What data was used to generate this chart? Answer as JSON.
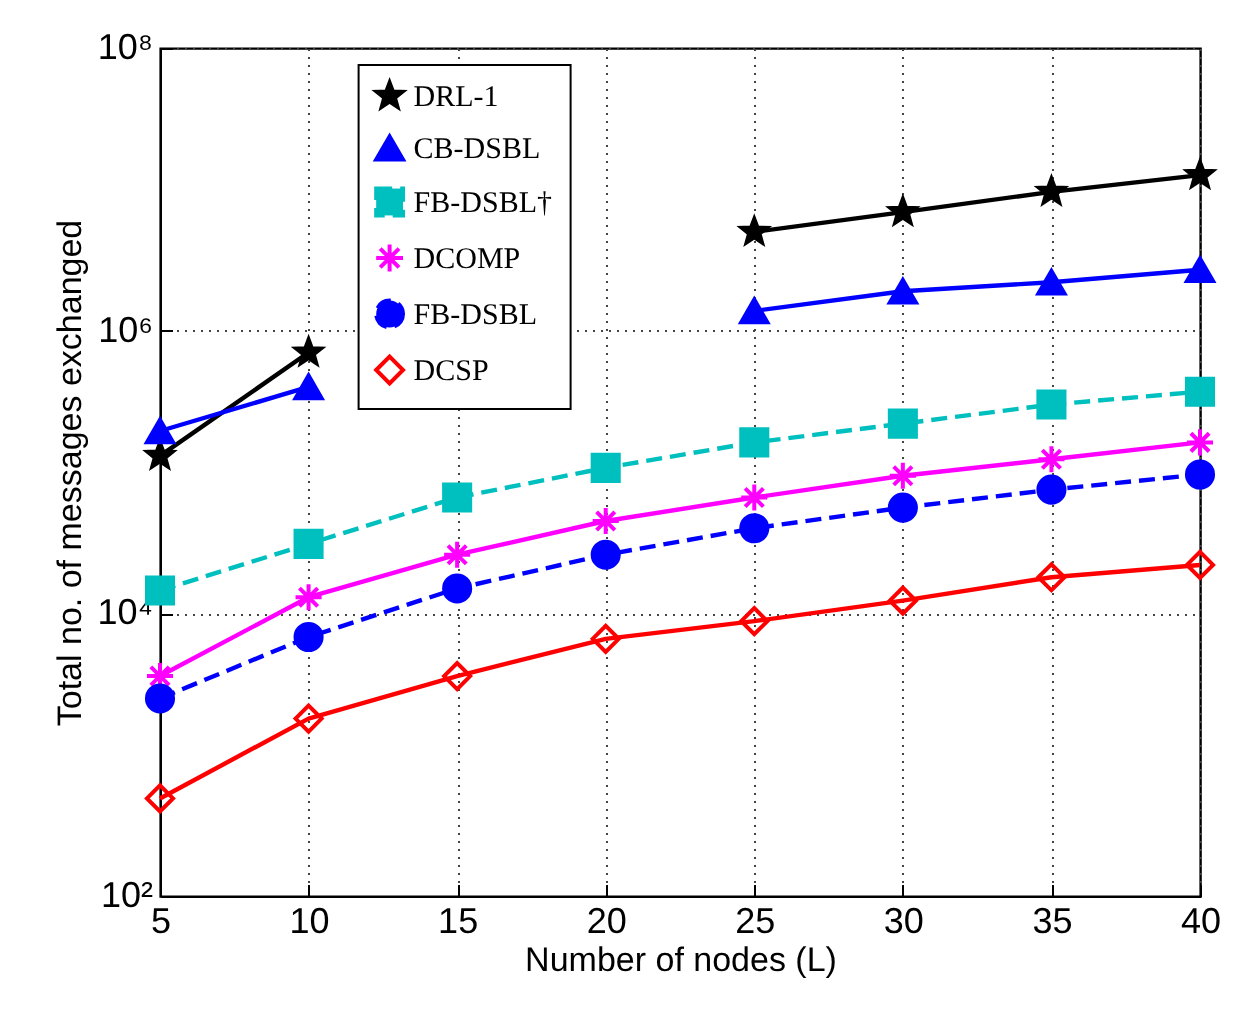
{
  "chart_data": {
    "type": "line",
    "xlabel": "Number of nodes (L)",
    "ylabel": "Total no. of messages exchanged",
    "x": [
      5,
      10,
      15,
      20,
      25,
      30,
      35,
      40
    ],
    "series": [
      {
        "name": "DRL-1",
        "color": "#000000",
        "marker": "star",
        "line_style": "solid",
        "values": [
          130000,
          700000,
          null,
          null,
          5000000,
          6900000,
          9600000,
          12600000
        ]
      },
      {
        "name": "CB-DSBL",
        "color": "#0000ff",
        "marker": "triangle",
        "line_style": "solid",
        "values": [
          195000,
          400000,
          null,
          null,
          1380000,
          1900000,
          2200000,
          2700000
        ]
      },
      {
        "name": "FB-DSBL†",
        "color": "#00bfbf",
        "marker": "square",
        "line_style": "dashed",
        "values": [
          14500,
          31000,
          66000,
          107000,
          162000,
          220000,
          300000,
          370000
        ]
      },
      {
        "name": "DCOMP",
        "color": "#ff00ff",
        "marker": "cross",
        "line_style": "solid",
        "values": [
          3600,
          13000,
          26000,
          45000,
          66000,
          94000,
          123000,
          162000
        ]
      },
      {
        "name": "FB-DSBL",
        "color": "#0000ff",
        "marker": "circle",
        "line_style": "dashed",
        "values": [
          2500,
          6800,
          15000,
          26000,
          40000,
          56000,
          75000,
          96000
        ]
      },
      {
        "name": "DCSP",
        "color": "#ff0000",
        "marker": "diamond",
        "line_style": "solid",
        "values": [
          490,
          1800,
          3600,
          6600,
          8800,
          12300,
          18000,
          22000
        ]
      }
    ],
    "xlim": [
      5,
      40
    ],
    "xticks": [
      5,
      10,
      15,
      20,
      25,
      30,
      35,
      40
    ],
    "ylim": [
      100,
      100000000
    ],
    "yticks": [
      {
        "value": 100,
        "label": "10²"
      },
      {
        "value": 10000,
        "label": "10⁴"
      },
      {
        "value": 1000000,
        "label": "10⁶"
      },
      {
        "value": 100000000,
        "label": "10⁸"
      }
    ],
    "log": true,
    "grid": true,
    "legend": "top left"
  }
}
